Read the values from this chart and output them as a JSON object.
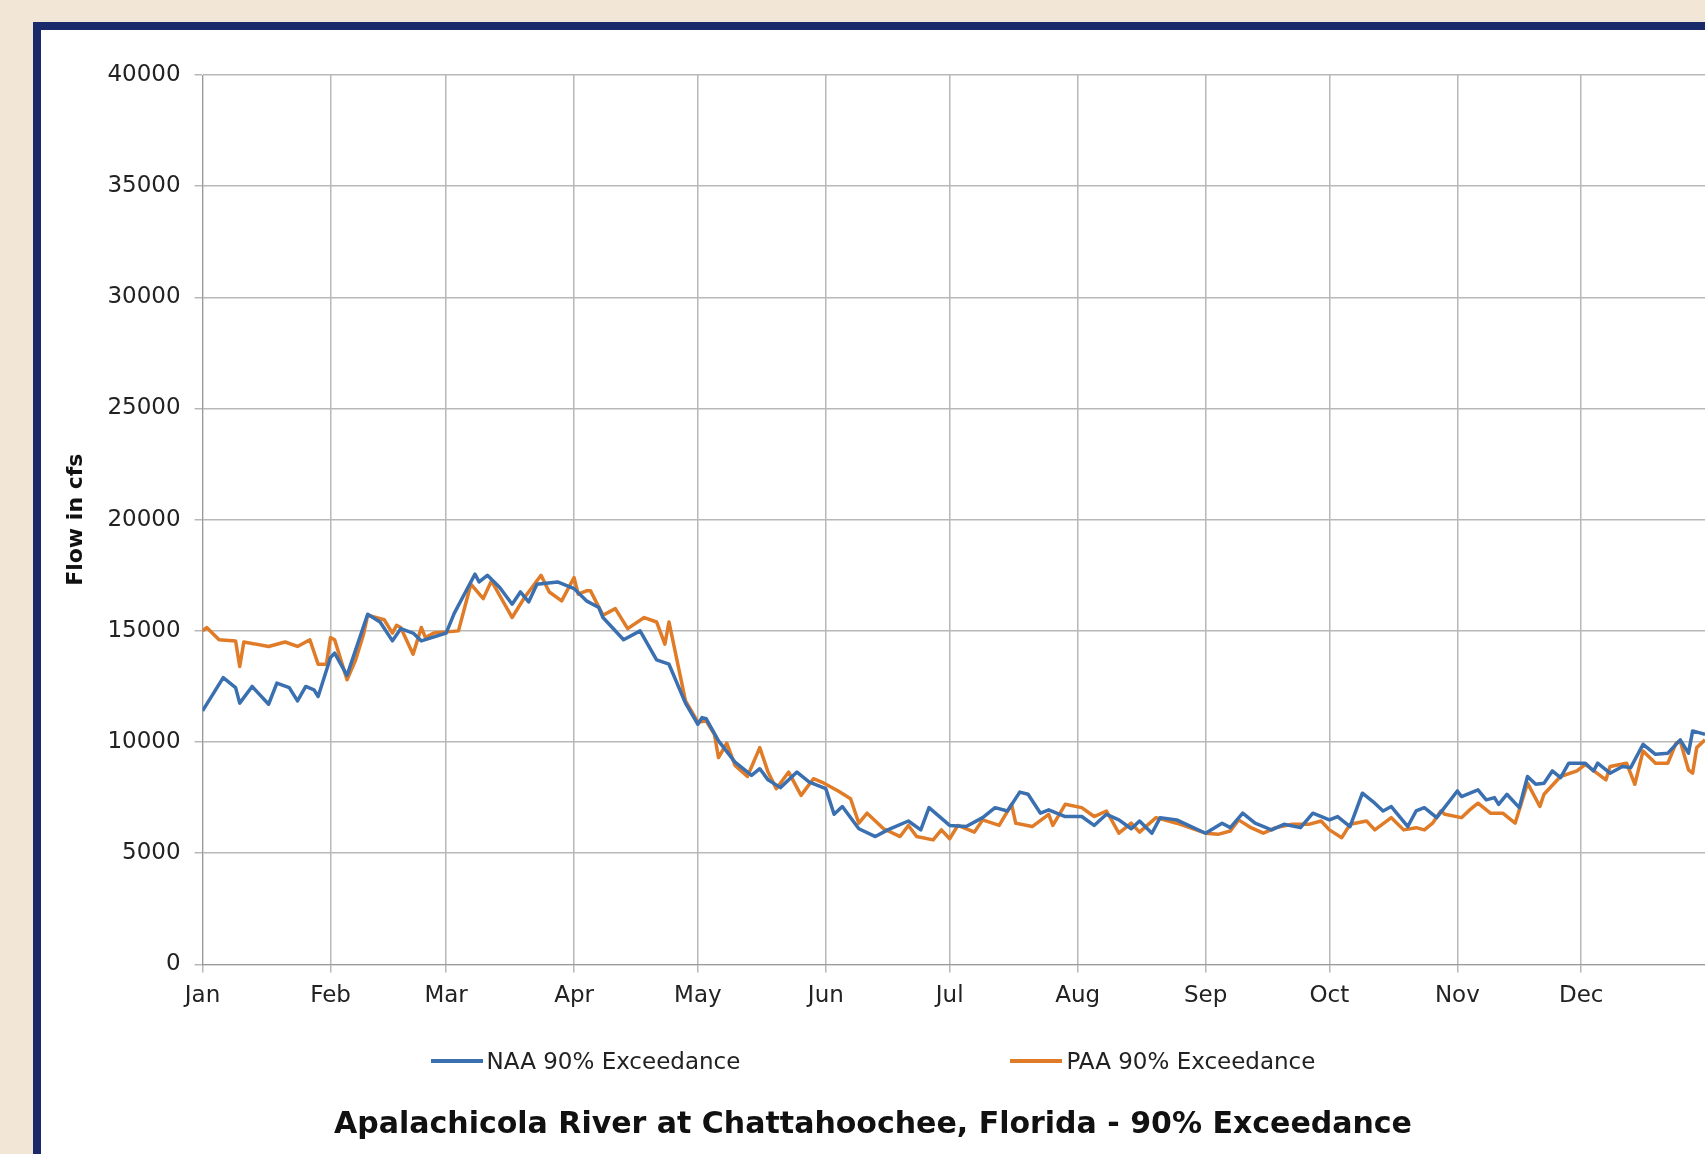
{
  "chart_data": {
    "type": "line",
    "title": "Apalachicola River at Chattahoochee, Florida - 90% Exceedance",
    "ylabel": "Flow in cfs",
    "xlim": [
      "--01-01",
      "--12-31"
    ],
    "xticks": [
      {
        "value": "--01-01",
        "label": "Jan"
      },
      {
        "value": "--02-01",
        "label": "Feb"
      },
      {
        "value": "--03-01",
        "label": "Mar"
      },
      {
        "value": "--04-01",
        "label": "Apr"
      },
      {
        "value": "--05-01",
        "label": "May"
      },
      {
        "value": "--06-01",
        "label": "Jun"
      },
      {
        "value": "--07-01",
        "label": "Jul"
      },
      {
        "value": "--08-01",
        "label": "Aug"
      },
      {
        "value": "--09-01",
        "label": "Sep"
      },
      {
        "value": "--10-01",
        "label": "Oct"
      },
      {
        "value": "--11-01",
        "label": "Nov"
      },
      {
        "value": "--12-01",
        "label": "Dec"
      }
    ],
    "ylim": [
      0,
      40000
    ],
    "yticks": [
      0,
      5000,
      10000,
      15000,
      20000,
      25000,
      30000,
      35000,
      40000
    ],
    "grid": true,
    "legend": "bottom",
    "marker": "none",
    "line_style": "solid",
    "series": [
      {
        "name": "NAA 90% Exceedance",
        "color": "#3a6fb0",
        "x": [
          "--01-01",
          "--01-06",
          "--01-09",
          "--01-10",
          "--01-13",
          "--01-17",
          "--01-19",
          "--01-22",
          "--01-24",
          "--01-26",
          "--01-28",
          "--01-29",
          "--02-01",
          "--02-02",
          "--02-05",
          "--02-07",
          "--02-10",
          "--02-13",
          "--02-16",
          "--02-18",
          "--02-21",
          "--02-23",
          "--03-01",
          "--03-03",
          "--03-05",
          "--03-08",
          "--03-09",
          "--03-11",
          "--03-14",
          "--03-17",
          "--03-19",
          "--03-21",
          "--03-23",
          "--03-28",
          "--04-01",
          "--04-04",
          "--04-07",
          "--04-08",
          "--04-13",
          "--04-17",
          "--04-21",
          "--04-24",
          "--04-28",
          "--05-01",
          "--05-02",
          "--05-03",
          "--05-06",
          "--05-10",
          "--05-14",
          "--05-16",
          "--05-18",
          "--05-21",
          "--05-25",
          "--05-28",
          "--06-01",
          "--06-03",
          "--06-05",
          "--06-09",
          "--06-13",
          "--06-16",
          "--06-21",
          "--06-24",
          "--06-26",
          "--07-01",
          "--07-05",
          "--07-09",
          "--07-12",
          "--07-15",
          "--07-18",
          "--07-20",
          "--07-23",
          "--07-25",
          "--07-29",
          "--08-02",
          "--08-05",
          "--08-08",
          "--08-11",
          "--08-14",
          "--08-16",
          "--08-19",
          "--08-21",
          "--08-25",
          "--09-01",
          "--09-05",
          "--09-07",
          "--09-10",
          "--09-13",
          "--09-17",
          "--09-20",
          "--09-24",
          "--09-27",
          "--10-01",
          "--10-03",
          "--10-06",
          "--10-09",
          "--10-12",
          "--10-14",
          "--10-16",
          "--10-20",
          "--10-22",
          "--10-24",
          "--10-27",
          "--11-01",
          "--11-02",
          "--11-06",
          "--11-08",
          "--11-10",
          "--11-11",
          "--11-13",
          "--11-16",
          "--11-18",
          "--11-20",
          "--11-22",
          "--11-24",
          "--11-26",
          "--11-28",
          "--12-02",
          "--12-04",
          "--12-05",
          "--12-08",
          "--12-11",
          "--12-13",
          "--12-16",
          "--12-19",
          "--12-22",
          "--12-25",
          "--12-27",
          "--12-28",
          "--12-31"
        ],
        "values": [
          11400,
          12900,
          12450,
          11750,
          12500,
          11700,
          12650,
          12450,
          11850,
          12500,
          12350,
          12050,
          13800,
          14000,
          13000,
          14100,
          15750,
          15400,
          14550,
          15100,
          14900,
          14550,
          14900,
          15800,
          16500,
          17550,
          17200,
          17500,
          16950,
          16200,
          16750,
          16300,
          17100,
          17200,
          16900,
          16350,
          16050,
          15600,
          14600,
          15000,
          13700,
          13500,
          11750,
          10800,
          11100,
          11050,
          10050,
          9100,
          8500,
          8800,
          8300,
          7950,
          8650,
          8200,
          7900,
          6750,
          7100,
          6100,
          5750,
          6050,
          6450,
          6050,
          7050,
          6250,
          6200,
          6600,
          7050,
          6900,
          7750,
          7650,
          6800,
          6950,
          6650,
          6650,
          6250,
          6750,
          6500,
          6100,
          6450,
          5900,
          6600,
          6500,
          5900,
          6350,
          6150,
          6800,
          6350,
          6050,
          6300,
          6150,
          6800,
          6500,
          6650,
          6200,
          7700,
          7250,
          6900,
          7100,
          6200,
          6900,
          7050,
          6600,
          7800,
          7550,
          7850,
          7400,
          7500,
          7200,
          7650,
          7050,
          8450,
          8100,
          8150,
          8700,
          8400,
          9050,
          9050,
          8700,
          9050,
          8600,
          8900,
          8850,
          9900,
          9450,
          9500,
          10100,
          9500,
          10500,
          10350
        ]
      },
      {
        "name": "PAA 90% Exceedance",
        "color": "#e07b28",
        "x": [
          "--01-01",
          "--01-02",
          "--01-05",
          "--01-09",
          "--01-10",
          "--01-11",
          "--01-17",
          "--01-21",
          "--01-24",
          "--01-27",
          "--01-29",
          "--01-31",
          "--02-01",
          "--02-02",
          "--02-05",
          "--02-07",
          "--02-09",
          "--02-10",
          "--02-14",
          "--02-16",
          "--02-17",
          "--02-18",
          "--02-21",
          "--02-23",
          "--02-24",
          "--02-26",
          "--03-04",
          "--03-07",
          "--03-10",
          "--03-12",
          "--03-17",
          "--03-20",
          "--03-24",
          "--03-26",
          "--03-29",
          "--04-01",
          "--04-02",
          "--04-04",
          "--04-05",
          "--04-08",
          "--04-11",
          "--04-14",
          "--04-18",
          "--04-21",
          "--04-23",
          "--04-24",
          "--04-28",
          "--05-01",
          "--05-03",
          "--05-05",
          "--05-06",
          "--05-08",
          "--05-10",
          "--05-13",
          "--05-16",
          "--05-18",
          "--05-20",
          "--05-23",
          "--05-26",
          "--05-29",
          "--05-31",
          "--06-04",
          "--06-07",
          "--06-09",
          "--06-11",
          "--06-15",
          "--06-19",
          "--06-21",
          "--06-23",
          "--06-27",
          "--06-29",
          "--07-01",
          "--07-03",
          "--07-07",
          "--07-09",
          "--07-13",
          "--07-16",
          "--07-17",
          "--07-21",
          "--07-25",
          "--07-26",
          "--07-29",
          "--08-02",
          "--08-05",
          "--08-08",
          "--08-11",
          "--08-14",
          "--08-16",
          "--08-20",
          "--08-25",
          "--09-01",
          "--09-04",
          "--09-07",
          "--09-09",
          "--09-12",
          "--09-15",
          "--09-18",
          "--09-22",
          "--09-26",
          "--09-29",
          "--10-01",
          "--10-04",
          "--10-06",
          "--10-10",
          "--10-12",
          "--10-16",
          "--10-19",
          "--10-22",
          "--10-24",
          "--10-26",
          "--10-28",
          "--10-29",
          "--11-02",
          "--11-04",
          "--11-06",
          "--11-09",
          "--11-12",
          "--11-15",
          "--11-18",
          "--11-21",
          "--11-22",
          "--11-26",
          "--11-30",
          "--12-02",
          "--12-07",
          "--12-08",
          "--12-12",
          "--12-14",
          "--12-16",
          "--12-19",
          "--12-22",
          "--12-24",
          "--12-25",
          "--12-27",
          "--12-28",
          "--12-29",
          "--12-31"
        ],
        "values": [
          15000,
          15150,
          14600,
          14550,
          13400,
          14500,
          14300,
          14500,
          14300,
          14600,
          13500,
          13500,
          14700,
          14600,
          12800,
          13650,
          14850,
          15700,
          15500,
          14900,
          15250,
          15150,
          13950,
          15150,
          14700,
          14900,
          15000,
          17100,
          16450,
          17250,
          15600,
          16500,
          17500,
          16750,
          16350,
          17400,
          16650,
          16800,
          16800,
          15700,
          16000,
          15100,
          15600,
          15400,
          14400,
          15400,
          11850,
          10900,
          10950,
          10350,
          9300,
          9950,
          8950,
          8450,
          9750,
          8650,
          7900,
          8650,
          7600,
          8350,
          8200,
          7800,
          7450,
          6350,
          6800,
          6100,
          5750,
          6250,
          5750,
          5600,
          6050,
          5650,
          6250,
          5950,
          6500,
          6250,
          7200,
          6350,
          6200,
          6750,
          6250,
          7200,
          7050,
          6650,
          6900,
          5900,
          6350,
          5950,
          6600,
          6350,
          5900,
          5850,
          6000,
          6500,
          6150,
          5900,
          6150,
          6300,
          6300,
          6450,
          6050,
          5700,
          6300,
          6450,
          6050,
          6600,
          6050,
          6150,
          6050,
          6350,
          6900,
          6750,
          6600,
          6950,
          7250,
          6800,
          6800,
          6350,
          8150,
          7100,
          7650,
          8450,
          8700,
          9000,
          8300,
          8900,
          9050,
          8100,
          9600,
          9050,
          9050,
          9950,
          10050,
          8750,
          8600,
          9750,
          10100
        ]
      }
    ]
  }
}
